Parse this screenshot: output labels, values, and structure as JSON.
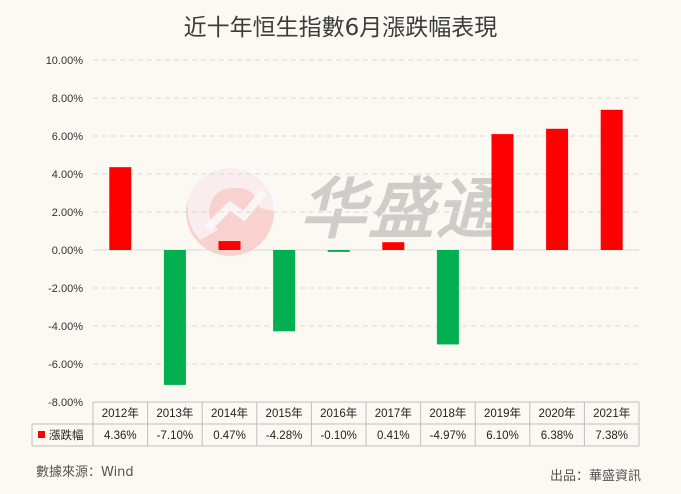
{
  "title": "近十年恒生指數6月漲跌幅表現",
  "source": "數據來源：Wind",
  "credit": "出品：華盛資訊",
  "watermark_text": "华盛通",
  "colors": {
    "positive": "#ff0000",
    "negative": "#00b050",
    "grid": "#d9d9d9",
    "table": "#bfbfbf"
  },
  "chart_data": {
    "type": "bar",
    "title": "近十年恒生指數6月漲跌幅表現",
    "categories": [
      "2012年",
      "2013年",
      "2014年",
      "2015年",
      "2016年",
      "2017年",
      "2018年",
      "2019年",
      "2020年",
      "2021年"
    ],
    "series": [
      {
        "name": "漲跌幅",
        "values": [
          4.36,
          -7.1,
          0.47,
          -4.28,
          -0.1,
          0.41,
          -4.97,
          6.1,
          6.38,
          7.38
        ]
      }
    ],
    "value_labels": [
      "4.36%",
      "-7.10%",
      "0.47%",
      "-4.28%",
      "-0.10%",
      "0.41%",
      "-4.97%",
      "6.10%",
      "6.38%",
      "7.38%"
    ],
    "yticks": [
      "10.00%",
      "8.00%",
      "6.00%",
      "4.00%",
      "2.00%",
      "0.00%",
      "-2.00%",
      "-4.00%",
      "-6.00%",
      "-8.00%"
    ],
    "ylim": [
      -8,
      10
    ],
    "grid": true,
    "legend": "data-table"
  }
}
